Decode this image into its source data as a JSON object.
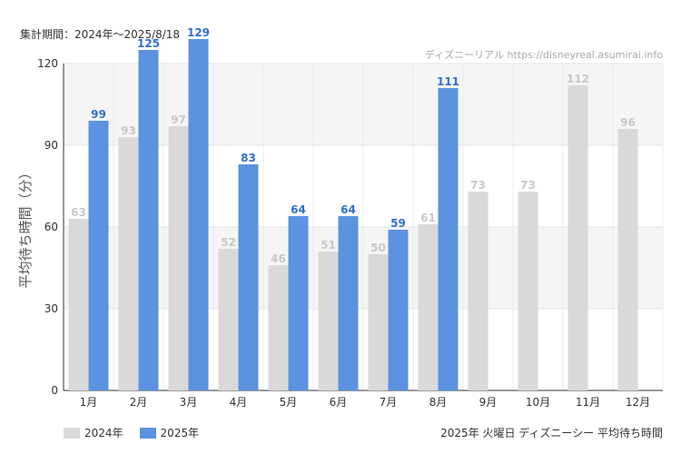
{
  "period_label": "集計期間：2024年〜2025/8/18",
  "credit": "ディズニーリアル https://disneyreal.asumirai.info",
  "footer_title": "2025年 火曜日 ディズニーシー 平均待ち時間",
  "colors": {
    "series_2024": "#d9d9d9",
    "series_2025": "#5b93e0",
    "label_2024": "#c8c8c8",
    "label_2025": "#2f6fcf"
  },
  "chart_data": {
    "type": "bar",
    "title": "2025年 火曜日 ディズニーシー 平均待ち時間",
    "ylabel": "平均待ち時間（分）",
    "xlabel": "",
    "ylim": [
      0,
      120
    ],
    "yticks": [
      0,
      30,
      60,
      90,
      120
    ],
    "categories": [
      "1月",
      "2月",
      "3月",
      "4月",
      "5月",
      "6月",
      "7月",
      "8月",
      "9月",
      "10月",
      "11月",
      "12月"
    ],
    "series": [
      {
        "name": "2024年",
        "values": [
          63,
          93,
          97,
          52,
          46,
          51,
          50,
          61,
          73,
          73,
          112,
          96
        ]
      },
      {
        "name": "2025年",
        "values": [
          99,
          125,
          129,
          83,
          64,
          64,
          59,
          111,
          null,
          null,
          null,
          null
        ]
      }
    ]
  }
}
